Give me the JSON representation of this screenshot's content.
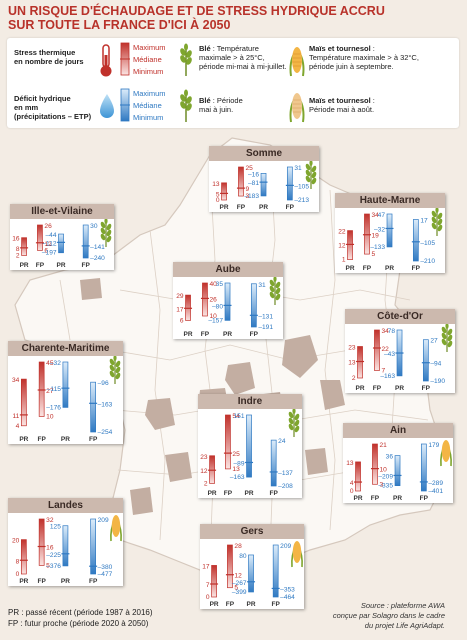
{
  "title_lines": [
    "UN RISQUE D'ÉCHAUDAGE ET DE STRESS HYDRIQUE ACCRU",
    "SUR TOUTE LA FRANCE D'ICI À 2050"
  ],
  "legend": {
    "thermal": {
      "label_lines": [
        "Stress thermique",
        "en nombre de jours"
      ],
      "max": "Maximum",
      "med": "Médiane",
      "min": "Minimum",
      "color": "#c0312b"
    },
    "water": {
      "label_lines": [
        "Déficit hydrique",
        "en mm",
        "(précipitations – ETP)"
      ],
      "max": "Maximum",
      "med": "Médiane",
      "min": "Minimum",
      "color": "#2f79c2"
    },
    "ble_thermal": {
      "title": "Blé",
      "text_lines": [
        " : Température",
        "maximale > à 25°C,",
        "période mi-mai à mi-juillet."
      ]
    },
    "mais_thermal": {
      "title": "Maïs et tournesol",
      "text_lines": [
        " :",
        "Température maximale > à 32°C,",
        "période juin à septembre."
      ]
    },
    "ble_water": {
      "title": "Blé",
      "text_lines": [
        " : Période",
        "mai à juin."
      ]
    },
    "mais_water": {
      "title": "Maïs et tournesol",
      "text_lines": [
        " :",
        "Période mai à août."
      ]
    }
  },
  "footer": {
    "pr": "PR : passé récent (période 1987 à 2016)",
    "fp": "FP : futur proche (période 2020 à 2050)",
    "source_lines": [
      "Source : plateforme AWA",
      "conçue par Solagro dans le cadre",
      "du projet Life AgriAdapt."
    ]
  },
  "colors": {
    "red": "#c0312b",
    "blue": "#2f79c2",
    "map_dept": "#fbf8f4",
    "map_highlight": "#c3aea2",
    "bg": "#f3ece4"
  },
  "chart_data": {
    "type": "range-bars",
    "period_labels": [
      "PR",
      "FP"
    ],
    "regions": [
      {
        "name": "Somme",
        "crop": "ble",
        "thermal": {
          "PR": [
            0,
            5,
            13
          ],
          "FP": [
            3,
            9,
            25
          ]
        },
        "water": {
          "PR": [
            -183,
            -81,
            -16
          ],
          "FP": [
            -213,
            -105,
            31
          ]
        }
      },
      {
        "name": "Ille-et-Vilaine",
        "crop": "ble",
        "thermal": {
          "PR": [
            2,
            8,
            16
          ],
          "FP": [
            6,
            12,
            26
          ]
        },
        "water": {
          "PR": [
            -197,
            -112,
            -44
          ],
          "FP": [
            -240,
            -141,
            30
          ]
        }
      },
      {
        "name": "Haute-Marne",
        "crop": "ble",
        "thermal": {
          "PR": [
            1,
            12,
            22
          ],
          "FP": [
            5,
            19,
            34
          ]
        },
        "water": {
          "PR": [
            -133,
            -32,
            47
          ],
          "FP": [
            -210,
            -105,
            17
          ]
        }
      },
      {
        "name": "Aube",
        "crop": "ble",
        "thermal": {
          "PR": [
            6,
            17,
            29
          ],
          "FP": [
            10,
            26,
            40
          ]
        },
        "water": {
          "PR": [
            -157,
            -80,
            35
          ],
          "FP": [
            -191,
            -131,
            31
          ]
        }
      },
      {
        "name": "Côte-d'Or",
        "crop": "ble",
        "thermal": {
          "PR": [
            2,
            13,
            23
          ],
          "FP": [
            7,
            22,
            34
          ]
        },
        "water": {
          "PR": [
            -163,
            -43,
            78
          ],
          "FP": [
            -190,
            -94,
            27
          ]
        }
      },
      {
        "name": "Charente-Maritime",
        "crop": "ble",
        "thermal": {
          "PR": [
            4,
            11,
            34
          ],
          "FP": [
            10,
            27,
            45
          ]
        },
        "water": {
          "PR": [
            -176,
            -115,
            -32
          ],
          "FP": [
            -254,
            -163,
            -96
          ]
        }
      },
      {
        "name": "Indre",
        "crop": "ble",
        "thermal": {
          "PR": [
            2,
            12,
            23
          ],
          "FP": [
            13,
            25,
            54
          ]
        },
        "water": {
          "PR": [
            -163,
            -89,
            151
          ],
          "FP": [
            -208,
            -137,
            24
          ]
        }
      },
      {
        "name": "Ain",
        "crop": "mais",
        "thermal": {
          "PR": [
            0,
            4,
            13
          ],
          "FP": [
            3,
            10,
            21
          ]
        },
        "water": {
          "PR": [
            -335,
            -209,
            36
          ],
          "FP": [
            -401,
            -289,
            179
          ]
        }
      },
      {
        "name": "Landes",
        "crop": "mais",
        "thermal": {
          "PR": [
            0,
            8,
            20
          ],
          "FP": [
            5,
            16,
            32
          ]
        },
        "water": {
          "PR": [
            -376,
            -225,
            125
          ],
          "FP": [
            -477,
            -380,
            209
          ]
        }
      },
      {
        "name": "Gers",
        "crop": "mais",
        "thermal": {
          "PR": [
            0,
            7,
            17
          ],
          "FP": [
            5,
            12,
            28
          ]
        },
        "water": {
          "PR": [
            -399,
            -267,
            80
          ],
          "FP": [
            -464,
            -353,
            209
          ]
        }
      }
    ]
  }
}
